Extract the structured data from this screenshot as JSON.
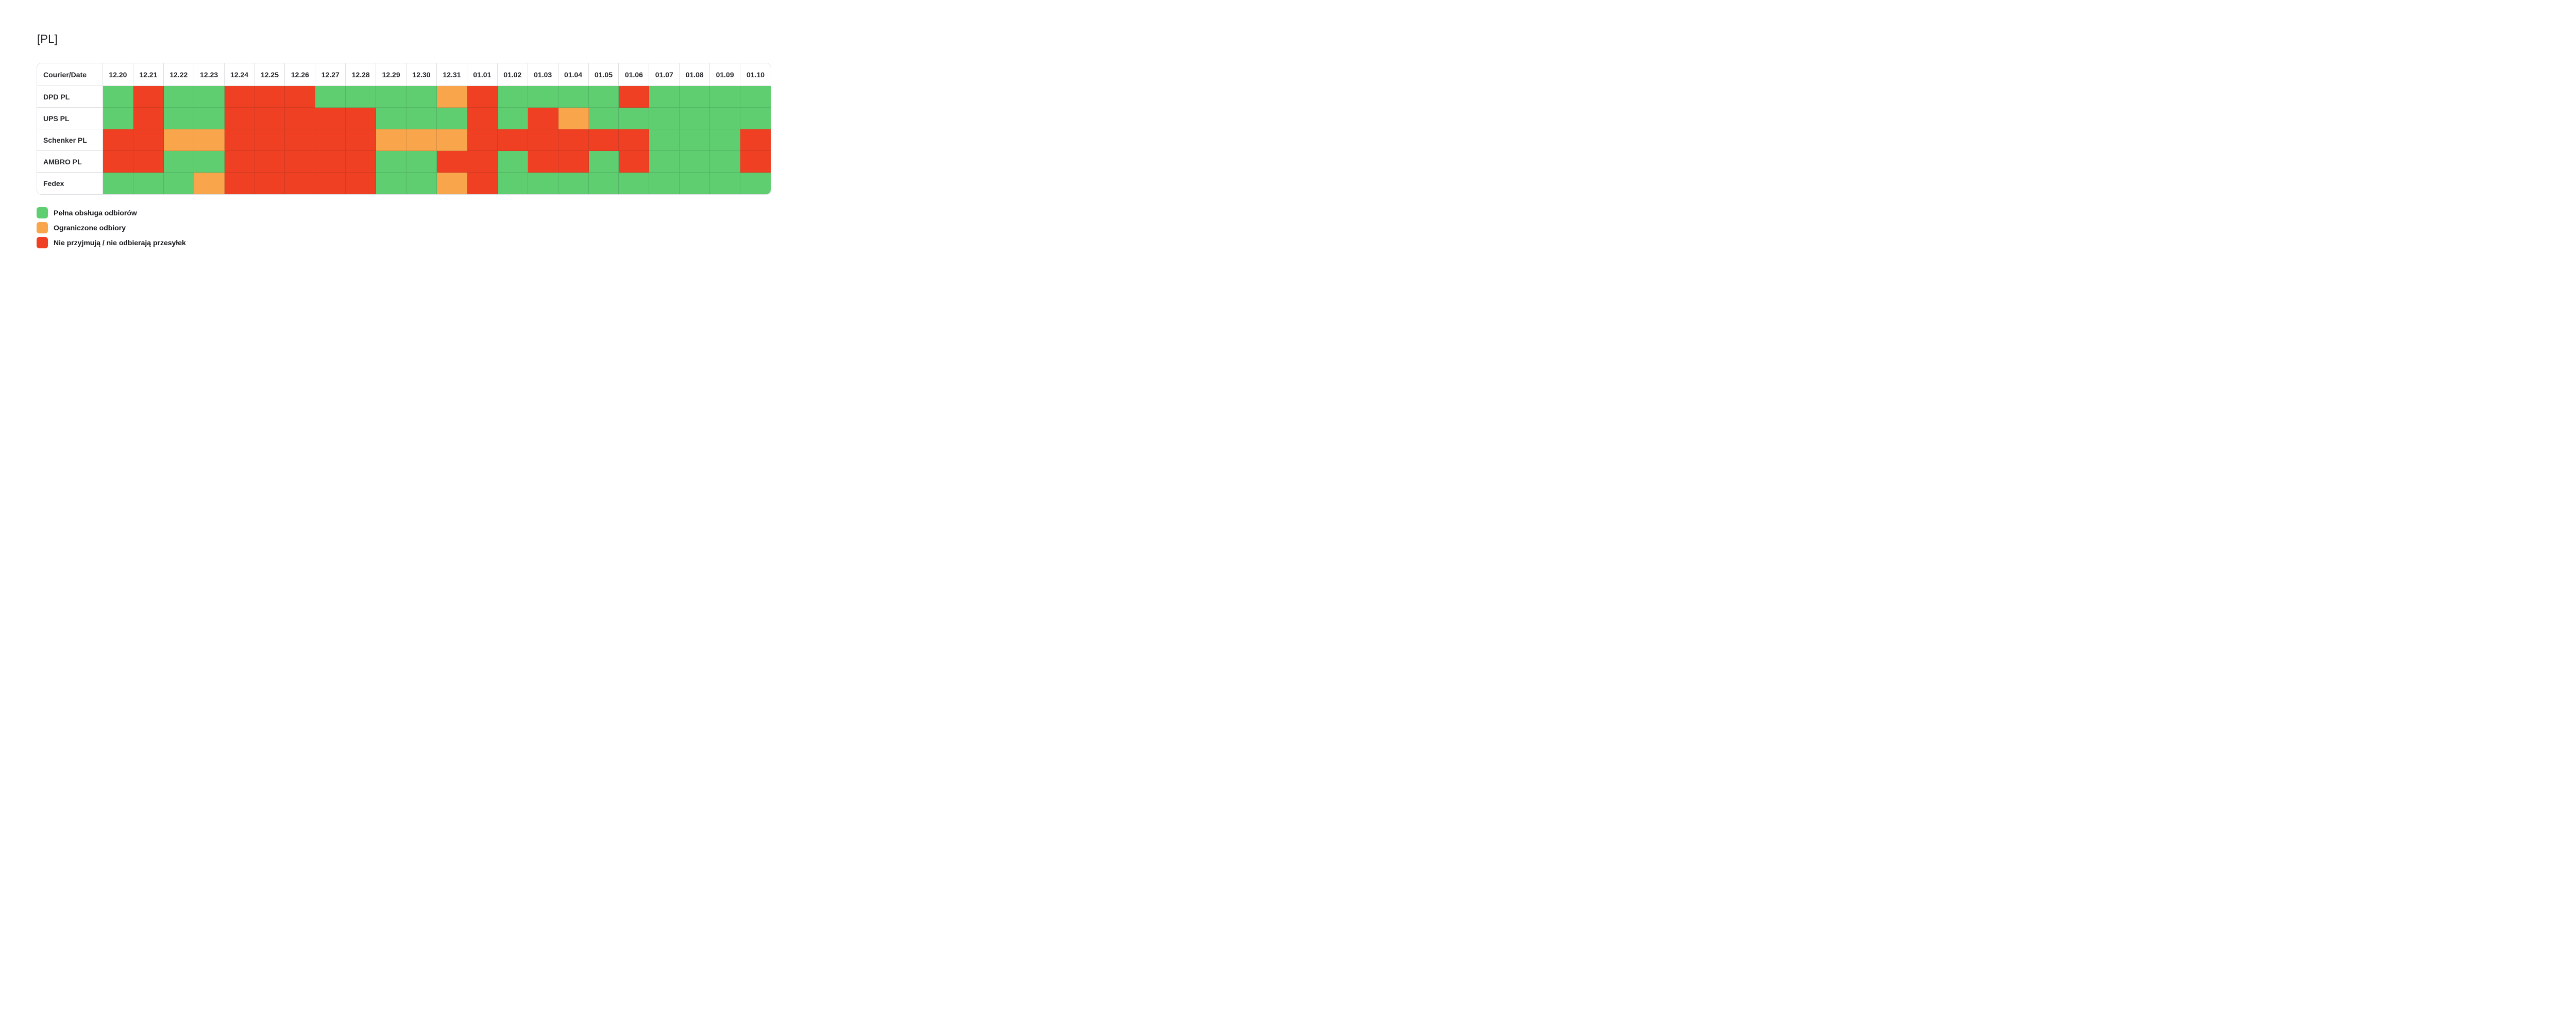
{
  "title": "[PL]",
  "chart_data": {
    "type": "heatmap",
    "corner_label": "Courier/Date",
    "columns": [
      "12.20",
      "12.21",
      "12.22",
      "12.23",
      "12.24",
      "12.25",
      "12.26",
      "12.27",
      "12.28",
      "12.29",
      "12.30",
      "12.31",
      "01.01",
      "01.02",
      "01.03",
      "01.04",
      "01.05",
      "01.06",
      "01.07",
      "01.08",
      "01.09",
      "01.10"
    ],
    "rows": [
      "DPD PL",
      "UPS PL",
      "Schenker PL",
      "AMBRO PL",
      "Fedex"
    ],
    "values": [
      [
        "full",
        "none",
        "full",
        "full",
        "none",
        "none",
        "none",
        "full",
        "full",
        "full",
        "full",
        "limited",
        "none",
        "full",
        "full",
        "full",
        "full",
        "none",
        "full",
        "full",
        "full",
        "full"
      ],
      [
        "full",
        "none",
        "full",
        "full",
        "none",
        "none",
        "none",
        "none",
        "none",
        "full",
        "full",
        "full",
        "none",
        "full",
        "none",
        "limited",
        "full",
        "full",
        "full",
        "full",
        "full",
        "full"
      ],
      [
        "none",
        "none",
        "limited",
        "limited",
        "none",
        "none",
        "none",
        "none",
        "none",
        "limited",
        "limited",
        "limited",
        "none",
        "none",
        "none",
        "none",
        "none",
        "none",
        "full",
        "full",
        "full",
        "none"
      ],
      [
        "none",
        "none",
        "full",
        "full",
        "none",
        "none",
        "none",
        "none",
        "none",
        "full",
        "full",
        "none",
        "none",
        "full",
        "none",
        "none",
        "full",
        "none",
        "full",
        "full",
        "full",
        "none"
      ],
      [
        "full",
        "full",
        "full",
        "limited",
        "none",
        "none",
        "none",
        "none",
        "none",
        "full",
        "full",
        "limited",
        "none",
        "full",
        "full",
        "full",
        "full",
        "full",
        "full",
        "full",
        "full",
        "full"
      ]
    ],
    "status_colors": {
      "full": "#5ECE70",
      "limited": "#F9A54B",
      "none": "#EF4023"
    },
    "legend": [
      {
        "status": "full",
        "label": "Pełna obsługa odbiorów"
      },
      {
        "status": "limited",
        "label": "Ograniczone odbiory"
      },
      {
        "status": "none",
        "label": "Nie przyjmują / nie odbierają przesyłek"
      }
    ],
    "legend_position": "bottom-left",
    "grid": true
  }
}
